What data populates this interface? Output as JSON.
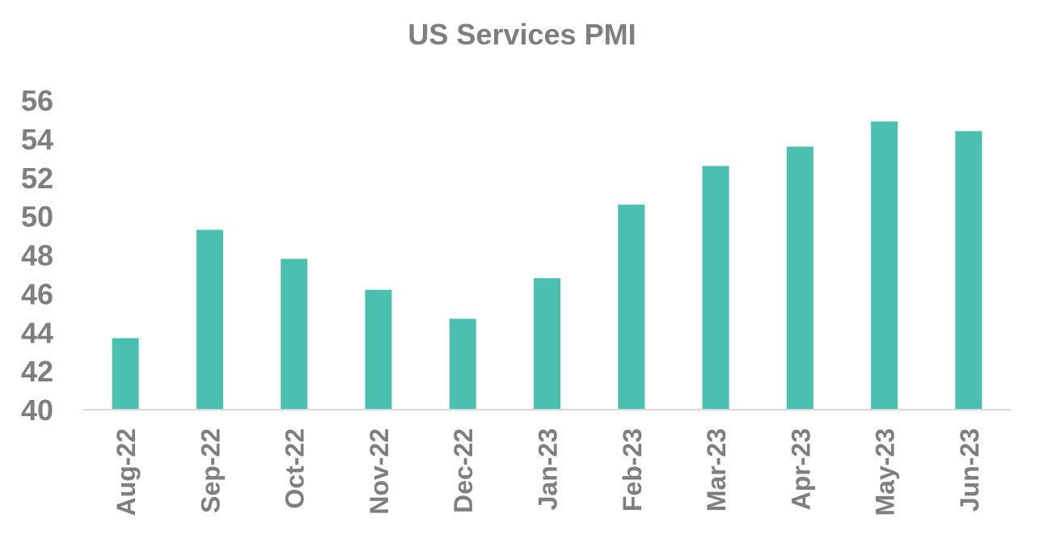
{
  "chart_data": {
    "type": "bar",
    "title": "US Services PMI",
    "xlabel": "",
    "ylabel": "",
    "categories": [
      "Aug-22",
      "Sep-22",
      "Oct-22",
      "Nov-22",
      "Dec-22",
      "Jan-23",
      "Feb-23",
      "Mar-23",
      "Apr-23",
      "May-23",
      "Jun-23"
    ],
    "values": [
      43.7,
      49.3,
      47.8,
      46.2,
      44.7,
      46.8,
      50.6,
      52.6,
      53.6,
      54.9,
      54.4
    ],
    "ylim": [
      40,
      56
    ],
    "yticks": [
      "40",
      "42",
      "44",
      "46",
      "48",
      "50",
      "52",
      "54",
      "56"
    ],
    "grid": false,
    "legend": "none",
    "colors": {
      "bar": "#4bc0b0",
      "text": "#7f7f7f",
      "axis": "#d9d9d9"
    }
  }
}
